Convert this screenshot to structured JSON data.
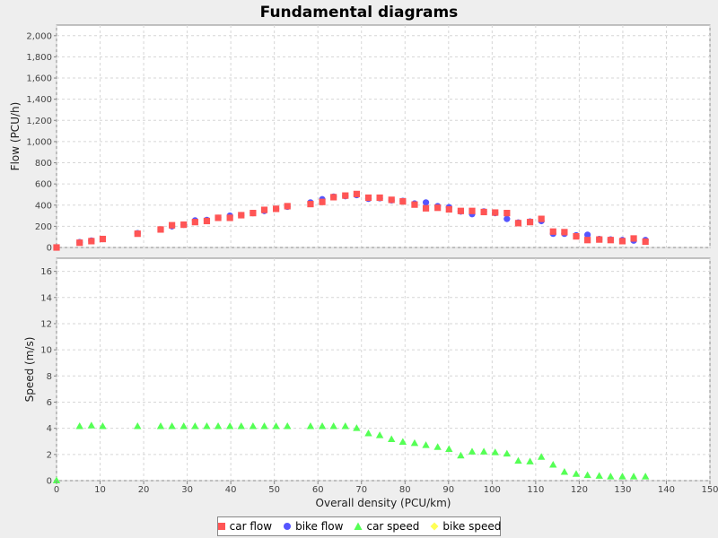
{
  "chart_data": {
    "type": "scatter",
    "title": "Fundamental diagrams",
    "xlabel": "Overall density (PCU/km)",
    "xlim": [
      0,
      150
    ],
    "x_ticks": [
      0,
      10,
      20,
      30,
      40,
      50,
      60,
      70,
      80,
      90,
      100,
      110,
      120,
      130,
      140,
      150
    ],
    "grid": true,
    "legend": "bottom",
    "panels": [
      {
        "name": "flow",
        "ylabel": "Flow (PCU/h)",
        "ylim": [
          0,
          2100
        ],
        "y_ticks": [
          0,
          200,
          400,
          600,
          800,
          1000,
          1200,
          1400,
          1600,
          1800,
          2000
        ],
        "y_tick_labels": [
          "0",
          "200",
          "400",
          "600",
          "800",
          "1,000",
          "1,200",
          "1,400",
          "1,600",
          "1,800",
          "2,000"
        ],
        "series": [
          {
            "name": "bike flow",
            "marker": "circle",
            "color": "#5555ff",
            "points": [
              [
                0,
                0
              ],
              [
                5.3,
                50
              ],
              [
                8,
                65
              ],
              [
                10.6,
                80
              ],
              [
                18.6,
                135
              ],
              [
                23.9,
                170
              ],
              [
                26.5,
                200
              ],
              [
                29.2,
                215
              ],
              [
                31.8,
                255
              ],
              [
                34.5,
                260
              ],
              [
                37.1,
                280
              ],
              [
                39.8,
                300
              ],
              [
                42.4,
                305
              ],
              [
                45.1,
                325
              ],
              [
                47.7,
                345
              ],
              [
                50.4,
                365
              ],
              [
                53,
                385
              ],
              [
                58.3,
                425
              ],
              [
                61,
                455
              ],
              [
                63.6,
                480
              ],
              [
                66.3,
                485
              ],
              [
                68.9,
                495
              ],
              [
                71.6,
                460
              ],
              [
                74.2,
                465
              ],
              [
                76.9,
                445
              ],
              [
                79.5,
                440
              ],
              [
                82.2,
                415
              ],
              [
                84.8,
                425
              ],
              [
                87.5,
                390
              ],
              [
                90.1,
                380
              ],
              [
                92.8,
                340
              ],
              [
                95.4,
                315
              ],
              [
                98.1,
                340
              ],
              [
                100.7,
                325
              ],
              [
                103.4,
                270
              ],
              [
                106,
                235
              ],
              [
                108.7,
                245
              ],
              [
                111.3,
                250
              ],
              [
                114,
                130
              ],
              [
                116.6,
                130
              ],
              [
                119.3,
                115
              ],
              [
                121.9,
                120
              ],
              [
                124.6,
                80
              ],
              [
                127.2,
                75
              ],
              [
                129.9,
                70
              ],
              [
                132.5,
                65
              ],
              [
                135.2,
                70
              ]
            ]
          },
          {
            "name": "car flow",
            "marker": "square",
            "color": "#ff5555",
            "points": [
              [
                0,
                0
              ],
              [
                5.3,
                45
              ],
              [
                8,
                60
              ],
              [
                10.6,
                80
              ],
              [
                18.6,
                130
              ],
              [
                23.9,
                170
              ],
              [
                26.5,
                210
              ],
              [
                29.2,
                215
              ],
              [
                31.8,
                240
              ],
              [
                34.5,
                250
              ],
              [
                37.1,
                280
              ],
              [
                39.8,
                280
              ],
              [
                42.4,
                305
              ],
              [
                45.1,
                325
              ],
              [
                47.7,
                355
              ],
              [
                50.4,
                365
              ],
              [
                53,
                390
              ],
              [
                58.3,
                410
              ],
              [
                61,
                430
              ],
              [
                63.6,
                475
              ],
              [
                66.3,
                490
              ],
              [
                68.9,
                505
              ],
              [
                71.6,
                470
              ],
              [
                74.2,
                470
              ],
              [
                76.9,
                450
              ],
              [
                79.5,
                435
              ],
              [
                82.2,
                405
              ],
              [
                84.8,
                370
              ],
              [
                87.5,
                375
              ],
              [
                90.1,
                360
              ],
              [
                92.8,
                345
              ],
              [
                95.4,
                345
              ],
              [
                98.1,
                335
              ],
              [
                100.7,
                330
              ],
              [
                103.4,
                325
              ],
              [
                106,
                230
              ],
              [
                108.7,
                240
              ],
              [
                111.3,
                270
              ],
              [
                114,
                150
              ],
              [
                116.6,
                145
              ],
              [
                119.3,
                105
              ],
              [
                121.9,
                70
              ],
              [
                124.6,
                75
              ],
              [
                127.2,
                70
              ],
              [
                129.9,
                60
              ],
              [
                132.5,
                85
              ],
              [
                135.2,
                55
              ]
            ]
          }
        ]
      },
      {
        "name": "speed",
        "ylabel": "Speed (m/s)",
        "ylim": [
          0,
          17
        ],
        "y_ticks": [
          0,
          2,
          4,
          6,
          8,
          10,
          12,
          14,
          16
        ],
        "y_tick_labels": [
          "0",
          "2",
          "4",
          "6",
          "8",
          "10",
          "12",
          "14",
          "16"
        ],
        "series": [
          {
            "name": "car speed",
            "marker": "triangle",
            "color": "#55ff55",
            "points": [
              [
                0,
                0
              ],
              [
                5.3,
                4.15
              ],
              [
                8,
                4.2
              ],
              [
                10.6,
                4.15
              ],
              [
                18.6,
                4.15
              ],
              [
                23.9,
                4.15
              ],
              [
                26.5,
                4.15
              ],
              [
                29.2,
                4.15
              ],
              [
                31.8,
                4.15
              ],
              [
                34.5,
                4.15
              ],
              [
                37.1,
                4.15
              ],
              [
                39.8,
                4.15
              ],
              [
                42.4,
                4.15
              ],
              [
                45.1,
                4.15
              ],
              [
                47.7,
                4.15
              ],
              [
                50.4,
                4.15
              ],
              [
                53,
                4.15
              ],
              [
                58.3,
                4.15
              ],
              [
                61,
                4.15
              ],
              [
                63.6,
                4.15
              ],
              [
                66.3,
                4.15
              ],
              [
                68.9,
                4.0
              ],
              [
                71.6,
                3.6
              ],
              [
                74.2,
                3.45
              ],
              [
                76.9,
                3.15
              ],
              [
                79.5,
                2.95
              ],
              [
                82.2,
                2.85
              ],
              [
                84.8,
                2.7
              ],
              [
                87.5,
                2.55
              ],
              [
                90.1,
                2.4
              ],
              [
                92.8,
                1.9
              ],
              [
                95.4,
                2.2
              ],
              [
                98.1,
                2.2
              ],
              [
                100.7,
                2.15
              ],
              [
                103.4,
                2.05
              ],
              [
                106,
                1.5
              ],
              [
                108.7,
                1.45
              ],
              [
                111.3,
                1.8
              ],
              [
                114,
                1.2
              ],
              [
                116.6,
                0.65
              ],
              [
                119.3,
                0.5
              ],
              [
                121.9,
                0.4
              ],
              [
                124.6,
                0.35
              ],
              [
                127.2,
                0.3
              ],
              [
                129.9,
                0.3
              ],
              [
                132.5,
                0.3
              ],
              [
                135.2,
                0.3
              ]
            ]
          },
          {
            "name": "bike speed",
            "marker": "diamond",
            "color": "#ffff55",
            "points": []
          }
        ]
      }
    ]
  }
}
